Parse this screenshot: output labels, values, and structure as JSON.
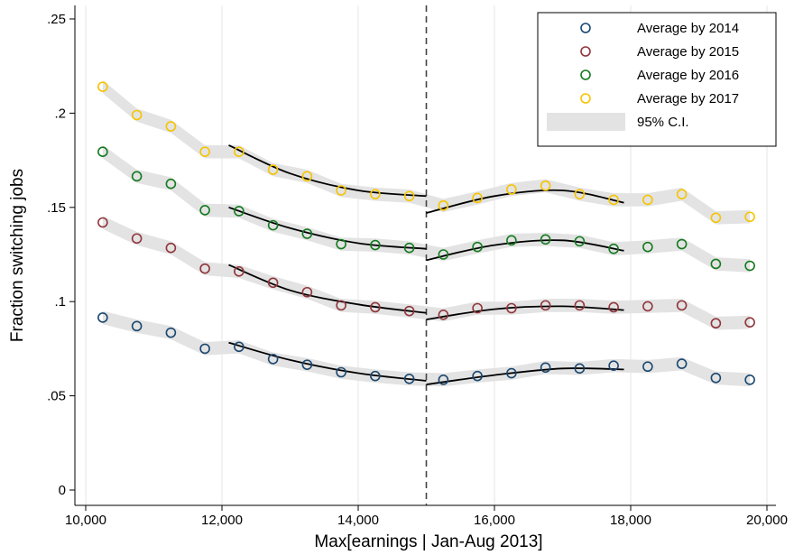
{
  "chart_data": {
    "type": "scatter",
    "title": "",
    "xlabel": "Max[earnings | Jan-Aug 2013]",
    "ylabel": "Fraction switching jobs",
    "xlim": [
      10000,
      20000
    ],
    "ylim": [
      0,
      0.25
    ],
    "x_ticks": [
      10000,
      12000,
      14000,
      16000,
      18000,
      20000
    ],
    "x_tick_labels": [
      "10,000",
      "12,000",
      "14,000",
      "16,000",
      "18,000",
      "20,000"
    ],
    "y_ticks": [
      0,
      0.05,
      0.1,
      0.15,
      0.2,
      0.25
    ],
    "y_tick_labels": [
      "0",
      ".05",
      ".1",
      ".15",
      ".2",
      ".25"
    ],
    "grid": "vertical gridlines at x ticks",
    "cutoff_line": {
      "x": 15000,
      "style": "dashed"
    },
    "legend_position": "top-right",
    "x": [
      10250,
      10750,
      11250,
      11750,
      12250,
      12750,
      13250,
      13750,
      14250,
      14750,
      15250,
      15750,
      16250,
      16750,
      17250,
      17750,
      18250,
      18750,
      19250,
      19750
    ],
    "series": [
      {
        "name": "Average by 2014",
        "color": "#1a476f",
        "values": [
          0.0915,
          0.087,
          0.0835,
          0.075,
          0.076,
          0.0695,
          0.0665,
          0.0625,
          0.0605,
          0.059,
          0.0585,
          0.0605,
          0.062,
          0.065,
          0.0645,
          0.066,
          0.0655,
          0.067,
          0.0595,
          0.0585
        ],
        "fit_left": [
          [
            12100,
            0.0782
          ],
          [
            13000,
            0.069
          ],
          [
            14000,
            0.062
          ],
          [
            15000,
            0.058
          ]
        ],
        "fit_right": [
          [
            15000,
            0.056
          ],
          [
            16000,
            0.061
          ],
          [
            17000,
            0.0645
          ],
          [
            17900,
            0.064
          ]
        ]
      },
      {
        "name": "Average by 2015",
        "color": "#90353b",
        "values": [
          0.142,
          0.1335,
          0.1285,
          0.1175,
          0.116,
          0.11,
          0.105,
          0.098,
          0.097,
          0.095,
          0.093,
          0.0965,
          0.0965,
          0.098,
          0.098,
          0.097,
          0.0975,
          0.098,
          0.0885,
          0.089
        ],
        "fit_left": [
          [
            12100,
            0.1195
          ],
          [
            13000,
            0.106
          ],
          [
            14000,
            0.0985
          ],
          [
            15000,
            0.094
          ]
        ],
        "fit_right": [
          [
            15000,
            0.0905
          ],
          [
            16000,
            0.096
          ],
          [
            17000,
            0.0975
          ],
          [
            17900,
            0.0955
          ]
        ]
      },
      {
        "name": "Average by 2016",
        "color": "#137a1f",
        "values": [
          0.1795,
          0.1665,
          0.1625,
          0.1485,
          0.148,
          0.1405,
          0.136,
          0.1305,
          0.13,
          0.1285,
          0.125,
          0.129,
          0.1325,
          0.133,
          0.132,
          0.128,
          0.129,
          0.1305,
          0.12,
          0.119
        ],
        "fit_left": [
          [
            12100,
            0.15
          ],
          [
            13000,
            0.139
          ],
          [
            14000,
            0.131
          ],
          [
            15000,
            0.128
          ]
        ],
        "fit_right": [
          [
            15000,
            0.122
          ],
          [
            16000,
            0.13
          ],
          [
            17000,
            0.1325
          ],
          [
            17900,
            0.127
          ]
        ]
      },
      {
        "name": "Average by 2017",
        "color": "#f5c400",
        "values": [
          0.214,
          0.199,
          0.193,
          0.1795,
          0.1795,
          0.17,
          0.1665,
          0.159,
          0.157,
          0.156,
          0.151,
          0.155,
          0.1595,
          0.1615,
          0.157,
          0.154,
          0.154,
          0.157,
          0.1445,
          0.145
        ],
        "fit_left": [
          [
            12100,
            0.183
          ],
          [
            13000,
            0.168
          ],
          [
            14000,
            0.159
          ],
          [
            15000,
            0.156
          ]
        ],
        "fit_right": [
          [
            15000,
            0.147
          ],
          [
            16000,
            0.156
          ],
          [
            17000,
            0.159
          ],
          [
            17900,
            0.1525
          ]
        ]
      }
    ],
    "ci_band": {
      "label": "95% C.I.",
      "color": "#e3e3e3",
      "half_width": 0.0035
    }
  }
}
